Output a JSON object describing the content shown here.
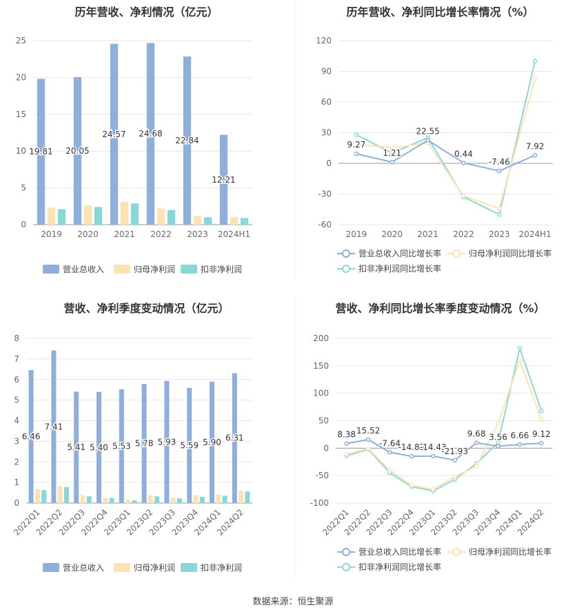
{
  "source": "数据来源：恒生聚源",
  "chart_data": [
    {
      "type": "bar",
      "title": "历年营收、净利情况（亿元）",
      "categories": [
        "2019",
        "2020",
        "2021",
        "2022",
        "2023",
        "2024H1"
      ],
      "ylim": [
        0,
        25
      ],
      "yticks": [
        0,
        5,
        10,
        15,
        20,
        25
      ],
      "legend_position": "bottom",
      "series": [
        {
          "name": "营业总收入",
          "color": "#8eaedb",
          "values": [
            19.81,
            20.05,
            24.57,
            24.68,
            22.84,
            12.21
          ],
          "labels": [
            "19.81",
            "20.05",
            "24.57",
            "24.68",
            "22.84",
            "12.21"
          ]
        },
        {
          "name": "归母净利润",
          "color": "#fde3b3",
          "values": [
            2.3,
            2.6,
            3.1,
            2.2,
            1.2,
            1.0
          ]
        },
        {
          "name": "扣非净利润",
          "color": "#88d8d8",
          "values": [
            2.1,
            2.4,
            2.9,
            2.0,
            1.0,
            0.9
          ]
        }
      ]
    },
    {
      "type": "line",
      "title": "历年营收、净利同比增长率情况（%）",
      "categories": [
        "2019",
        "2020",
        "2021",
        "2022",
        "2023",
        "2024H1"
      ],
      "ylim": [
        -60,
        120
      ],
      "yticks": [
        -60,
        -30,
        0,
        30,
        60,
        90,
        120
      ],
      "legend_position": "bottom",
      "series": [
        {
          "name": "营业总收入同比增长率",
          "color": "#8eaedb",
          "values": [
            9.27,
            1.21,
            22.55,
            0.44,
            -7.46,
            7.92
          ],
          "labels": [
            "9.27",
            "1.21",
            "22.55",
            "0.44",
            "-7.46",
            "7.92"
          ]
        },
        {
          "name": "归母净利润同比增长率",
          "color": "#fde3b3",
          "values": [
            19,
            15,
            20,
            -32,
            -44,
            83
          ]
        },
        {
          "name": "扣非净利润同比增长率",
          "color": "#88d8d8",
          "values": [
            28,
            10,
            25,
            -33,
            -50,
            100
          ]
        }
      ]
    },
    {
      "type": "bar",
      "title": "营收、净利季度变动情况（亿元）",
      "categories": [
        "2022Q1",
        "2022Q2",
        "2022Q3",
        "2022Q4",
        "2023Q1",
        "2023Q2",
        "2023Q3",
        "2023Q4",
        "2024Q1",
        "2024Q2"
      ],
      "ylim": [
        0,
        8
      ],
      "yticks": [
        0,
        1,
        2,
        3,
        4,
        5,
        6,
        7,
        8
      ],
      "legend_position": "bottom",
      "series": [
        {
          "name": "营业总收入",
          "color": "#8eaedb",
          "values": [
            6.46,
            7.41,
            5.41,
            5.4,
            5.53,
            5.78,
            5.93,
            5.59,
            5.9,
            6.31
          ],
          "labels": [
            "6.46",
            "7.41",
            "5.41",
            "5.40",
            "5.53",
            "5.78",
            "5.93",
            "5.59",
            "5.90",
            "6.31"
          ]
        },
        {
          "name": "归母净利润",
          "color": "#fde3b3",
          "values": [
            0.68,
            0.82,
            0.38,
            0.25,
            0.15,
            0.38,
            0.26,
            0.38,
            0.42,
            0.6
          ]
        },
        {
          "name": "扣非净利润",
          "color": "#88d8d8",
          "values": [
            0.63,
            0.78,
            0.33,
            0.25,
            0.13,
            0.33,
            0.23,
            0.3,
            0.36,
            0.56
          ]
        }
      ]
    },
    {
      "type": "line",
      "title": "营收、净利同比增长率季度变动情况（%）",
      "categories": [
        "2022Q1",
        "2022Q2",
        "2022Q3",
        "2022Q4",
        "2023Q1",
        "2023Q2",
        "2023Q3",
        "2023Q4",
        "2024Q1",
        "2024Q2"
      ],
      "ylim": [
        -100,
        200
      ],
      "yticks": [
        -100,
        -50,
        0,
        50,
        100,
        150,
        200
      ],
      "legend_position": "bottom",
      "series": [
        {
          "name": "营业总收入同比增长率",
          "color": "#8eaedb",
          "values": [
            8.38,
            15.52,
            -7.64,
            -14.83,
            -14.43,
            -21.93,
            9.68,
            3.56,
            6.66,
            9.12
          ],
          "labels": [
            "8.38",
            "15.52",
            "-7.64",
            "-14.83",
            "-14.43",
            "-21.93",
            "9.68",
            "3.56",
            "6.66",
            "9.12"
          ]
        },
        {
          "name": "归母净利润同比增长率",
          "color": "#fde3b3",
          "values": [
            -11,
            -1,
            -40,
            -68,
            -75,
            -52,
            -33,
            45,
            160,
            52
          ]
        },
        {
          "name": "扣非净利润同比增长率",
          "color": "#88d8d8",
          "values": [
            -14,
            -2,
            -45,
            -70,
            -78,
            -57,
            -28,
            10,
            182,
            68
          ]
        }
      ]
    }
  ]
}
